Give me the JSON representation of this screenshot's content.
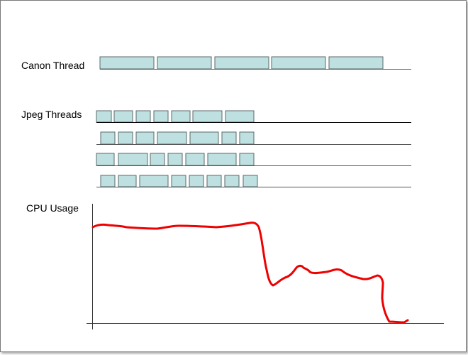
{
  "labels": {
    "canon": "Canon Thread",
    "jpeg": "Jpeg Threads",
    "cpu": "CPU Usage"
  },
  "colors": {
    "block_fill": "#bfe0e0",
    "block_stroke": "#5a6a6a",
    "cpu_line": "#ee0000"
  }
}
